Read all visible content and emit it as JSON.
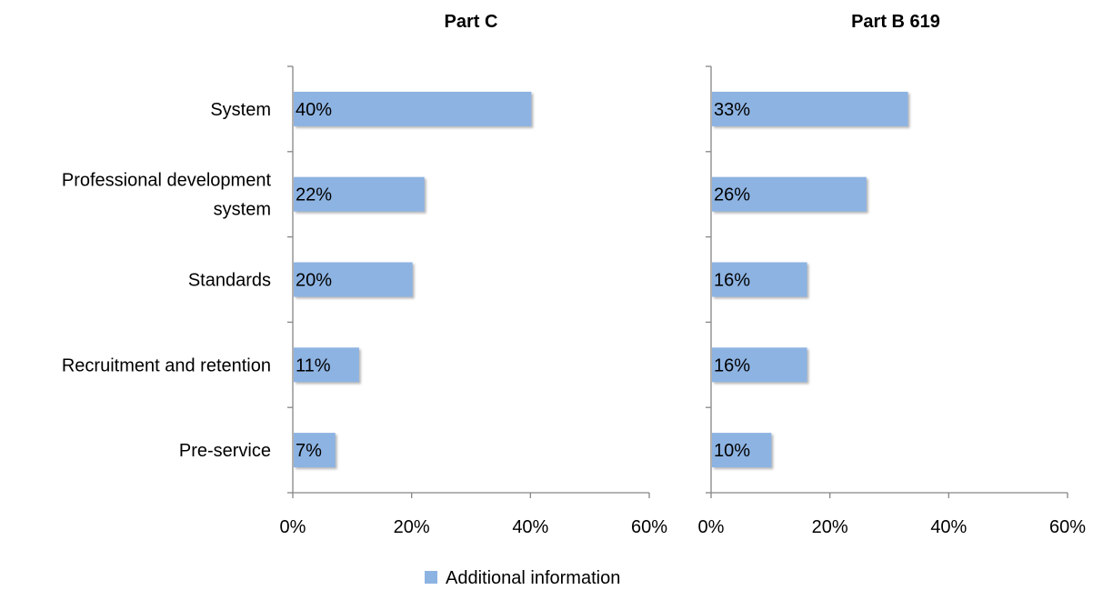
{
  "chart_data": [
    {
      "type": "bar",
      "orientation": "horizontal",
      "title": "Part C",
      "categories": [
        "System",
        "Professional development system",
        "Standards",
        "Recruitment and retention",
        "Pre-service"
      ],
      "series": [
        {
          "name": "Additional information",
          "values": [
            40,
            22,
            20,
            11,
            7
          ],
          "labels": [
            "40%",
            "22%",
            "20%",
            "11%",
            "7%"
          ]
        }
      ],
      "xlim": [
        0,
        60
      ],
      "x_ticks": [
        "0%",
        "20%",
        "40%",
        "60%"
      ],
      "grid": false
    },
    {
      "type": "bar",
      "orientation": "horizontal",
      "title": "Part B 619",
      "categories": [
        "System",
        "Professional development system",
        "Standards",
        "Recruitment and retention",
        "Pre-service"
      ],
      "series": [
        {
          "name": "Additional information",
          "values": [
            33,
            26,
            16,
            16,
            10
          ],
          "labels": [
            "33%",
            "26%",
            "16%",
            "16%",
            "10%"
          ]
        }
      ],
      "xlim": [
        0,
        60
      ],
      "x_ticks": [
        "0%",
        "20%",
        "40%",
        "60%"
      ],
      "grid": false
    }
  ],
  "category_labels": [
    [
      "System"
    ],
    [
      "Professional development",
      "system"
    ],
    [
      "Standards"
    ],
    [
      "Recruitment and retention"
    ],
    [
      "Pre-service"
    ]
  ],
  "legend": {
    "label": "Additional information",
    "position": "bottom"
  },
  "colors": {
    "bar": "#8db3e2",
    "bar_shadow": "#b9b9b9",
    "axis": "#868686"
  }
}
